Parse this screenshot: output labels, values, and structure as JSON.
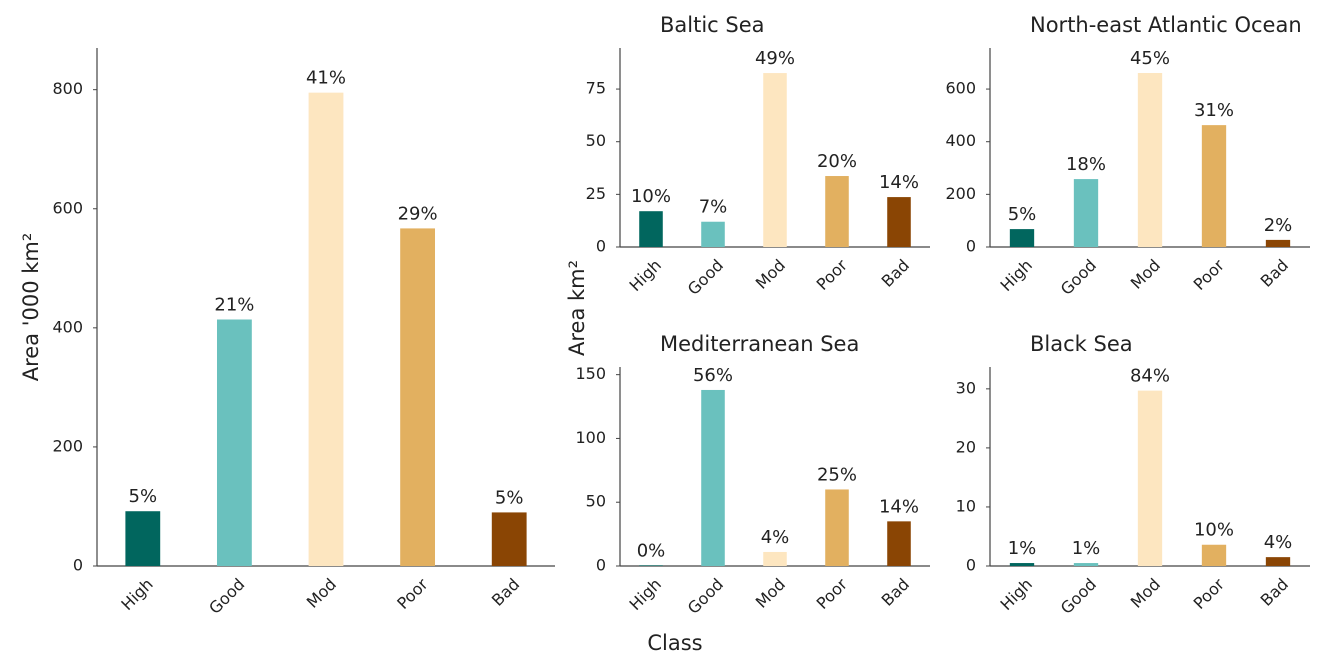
{
  "y_label": "Area km²",
  "x_label": "Class",
  "chart_data": [
    {
      "type": "bar",
      "y_label": "Area '000 km²",
      "categories": [
        "High",
        "Good",
        "Mod",
        "Poor",
        "Bad"
      ],
      "values": [
        92,
        414,
        795,
        567,
        90
      ],
      "percent_labels": [
        "5%",
        "21%",
        "41%",
        "29%",
        "5%"
      ],
      "colors": [
        "#01665e",
        "#6ac1be",
        "#fde6c0",
        "#e2b060",
        "#8a4504"
      ],
      "ylim": [
        0,
        870
      ],
      "yticks": [
        0,
        200,
        400,
        600,
        800
      ]
    },
    {
      "type": "bar",
      "title": "Baltic Sea",
      "categories": [
        "High",
        "Good",
        "Mod",
        "Poor",
        "Bad"
      ],
      "values": [
        17,
        12,
        82.6,
        33.7,
        23.7
      ],
      "percent_labels": [
        "10%",
        "7%",
        "49%",
        "20%",
        "14%"
      ],
      "colors": [
        "#01665e",
        "#6ac1be",
        "#fde6c0",
        "#e2b060",
        "#8a4504"
      ],
      "ylim": [
        0,
        94.5
      ],
      "yticks": [
        0,
        25,
        50,
        75
      ]
    },
    {
      "type": "bar",
      "title": "North-east Atlantic Ocean",
      "categories": [
        "High",
        "Good",
        "Mod",
        "Poor",
        "Bad"
      ],
      "values": [
        68,
        258,
        661,
        463,
        27
      ],
      "percent_labels": [
        "5%",
        "18%",
        "45%",
        "31%",
        "2%"
      ],
      "colors": [
        "#01665e",
        "#6ac1be",
        "#fde6c0",
        "#e2b060",
        "#8a4504"
      ],
      "ylim": [
        0,
        756
      ],
      "yticks": [
        0,
        200,
        400,
        600
      ]
    },
    {
      "type": "bar",
      "title": "Mediterranean Sea",
      "categories": [
        "High",
        "Good",
        "Mod",
        "Poor",
        "Bad"
      ],
      "values": [
        0.5,
        138,
        11,
        60,
        35
      ],
      "percent_labels": [
        "0%",
        "56%",
        "4%",
        "25%",
        "14%"
      ],
      "colors": [
        "#01665e",
        "#6ac1be",
        "#fde6c0",
        "#e2b060",
        "#8a4504"
      ],
      "ylim": [
        0,
        156
      ],
      "yticks": [
        0,
        50,
        100,
        150
      ]
    },
    {
      "type": "bar",
      "title": "Black Sea",
      "categories": [
        "High",
        "Good",
        "Mod",
        "Poor",
        "Bad"
      ],
      "values": [
        0.5,
        0.5,
        29.7,
        3.6,
        1.5
      ],
      "percent_labels": [
        "1%",
        "1%",
        "84%",
        "10%",
        "4%"
      ],
      "colors": [
        "#01665e",
        "#6ac1be",
        "#fde6c0",
        "#e2b060",
        "#8a4504"
      ],
      "ylim": [
        0,
        33.7
      ],
      "yticks": [
        0,
        10,
        20,
        30
      ]
    }
  ]
}
